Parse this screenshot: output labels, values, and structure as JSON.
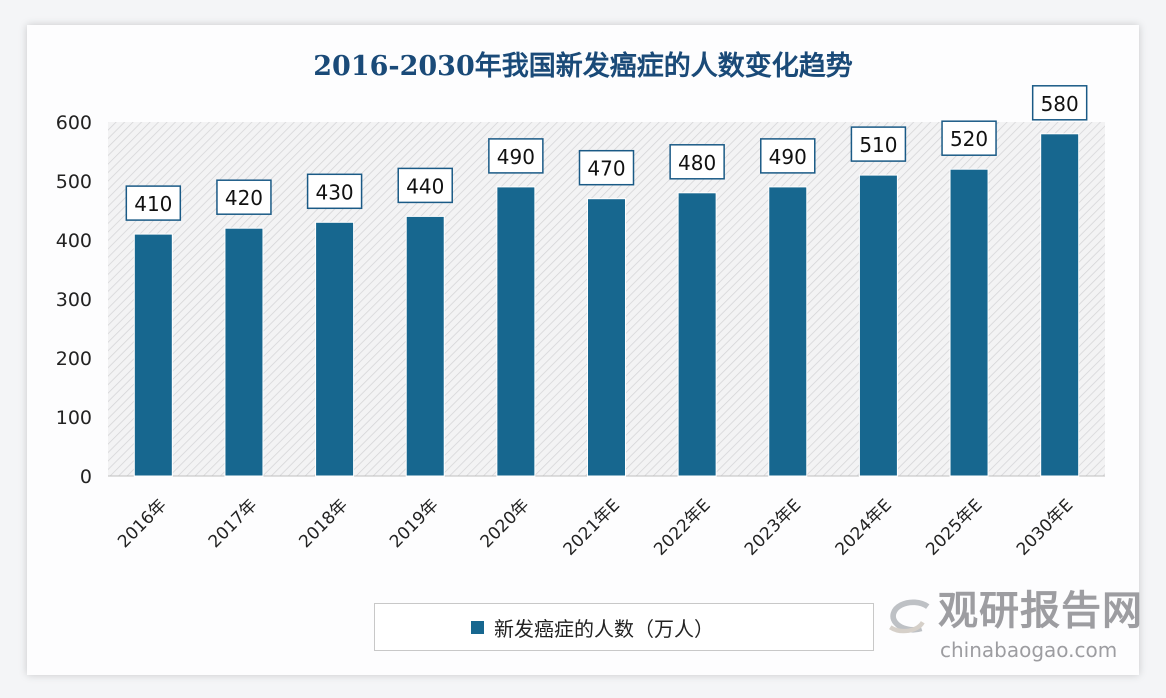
{
  "chart_data": {
    "type": "bar",
    "title": "2016-2030年我国新发癌症的人数变化趋势",
    "categories": [
      "2016年",
      "2017年",
      "2018年",
      "2019年",
      "2020年",
      "2021年E",
      "2022年E",
      "2023年E",
      "2024年E",
      "2025年E",
      "2030年E"
    ],
    "series": [
      {
        "name": "新发癌症的人数（万人）",
        "values": [
          410,
          420,
          430,
          440,
          490,
          470,
          480,
          490,
          510,
          520,
          580
        ],
        "color": "#17678f"
      }
    ],
    "ylim": [
      0,
      600
    ],
    "yticks": [
      0,
      100,
      200,
      300,
      400,
      500,
      600
    ],
    "xlabel": "",
    "ylabel": "",
    "grid": false,
    "legend": "bottom",
    "data_labels": true
  },
  "watermark": {
    "cn": "观研报告网",
    "en": "chinabaogao.com"
  }
}
